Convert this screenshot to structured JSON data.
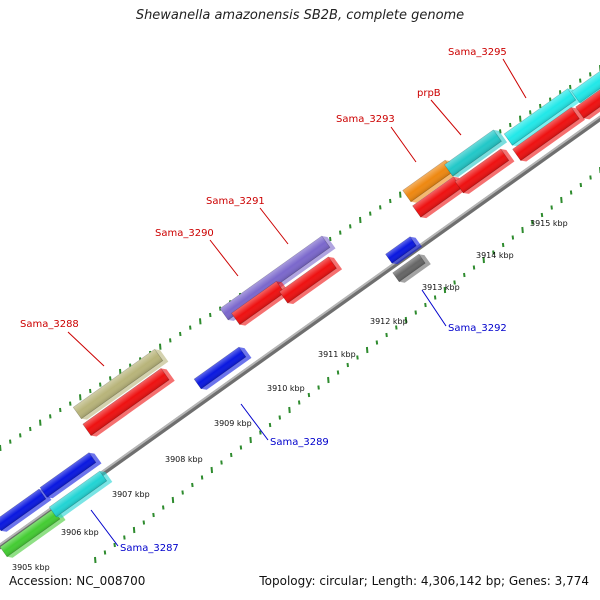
{
  "title": "Shewanella amazonensis SB2B, complete genome",
  "footer": {
    "accession": "Accession: NC_008700",
    "summary": "Topology: circular; Length: 4,306,142 bp; Genes: 3,774"
  },
  "colors": {
    "backbone": "#8a8a8a",
    "tick": "#2e8b2e",
    "label_forward": "#cc0000",
    "label_reverse": "#0000cc"
  },
  "scale_labels": [
    "3905 kbp",
    "3906 kbp",
    "3907 kbp",
    "3908 kbp",
    "3909 kbp",
    "3910 kbp",
    "3911 kbp",
    "3912 kbp",
    "3913 kbp",
    "3914 kbp",
    "3915 kbp"
  ],
  "features": [
    {
      "label": "Sama_3288",
      "strand": "forward",
      "color": "#b8b47a"
    },
    {
      "label": "Sama_3290",
      "strand": "forward",
      "color": "#7b68cc"
    },
    {
      "label": "Sama_3291",
      "strand": "forward",
      "color": "#ee1111"
    },
    {
      "label": "Sama_3293",
      "strand": "forward",
      "color": "#ee8811"
    },
    {
      "label": "prpB",
      "strand": "forward",
      "color": "#22c8c8"
    },
    {
      "label": "Sama_3295",
      "strand": "forward",
      "color": "#22e8e8"
    },
    {
      "label": "Sama_3287",
      "strand": "reverse",
      "color": "#22d4d4"
    },
    {
      "label": "Sama_3289",
      "strand": "reverse",
      "color": "#0a18e0"
    },
    {
      "label": "Sama_3292",
      "strand": "reverse",
      "color": "#666666"
    }
  ]
}
